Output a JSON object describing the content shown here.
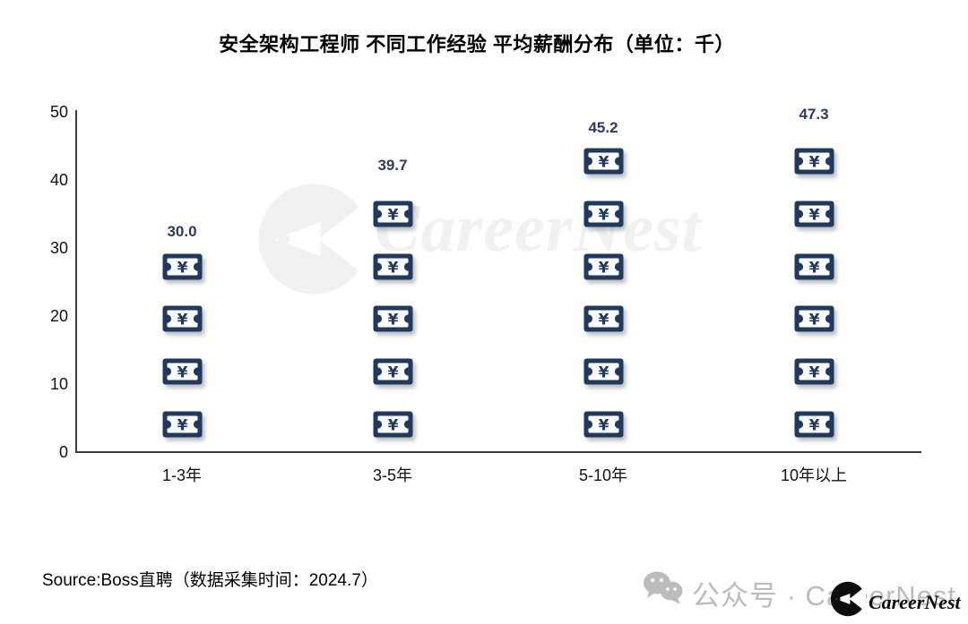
{
  "title": "安全架构工程师 不同工作经验 平均薪酬分布（单位：千）",
  "chart_data": {
    "type": "bar",
    "subtype": "pictogram",
    "title": "安全架构工程师 不同工作经验 平均薪酬分布（单位：千）",
    "categories": [
      "1-3年",
      "3-5年",
      "5-10年",
      "10年以上"
    ],
    "values": [
      30.0,
      39.7,
      45.2,
      47.3
    ],
    "value_labels": [
      "30.0",
      "39.7",
      "45.2",
      "47.3"
    ],
    "icon_counts": [
      4,
      5,
      6,
      6
    ],
    "icon": "banknote-yuan-icon",
    "ylim": [
      0,
      50
    ],
    "yticks": [
      0,
      10,
      20,
      30,
      40,
      50
    ],
    "xlabel": "",
    "ylabel": "",
    "grid": "off",
    "legend": "none",
    "icon_color": "#1f3a5e",
    "label_color": "#2e3a66",
    "axis_color": "#3a3a3a"
  },
  "watermark": {
    "text": "CareerNest"
  },
  "footer": {
    "source": "Source:Boss直聘（数据采集时间：2024.7）",
    "wechat_label": "公众号 · CareerNest",
    "brand": "CareerNest"
  }
}
